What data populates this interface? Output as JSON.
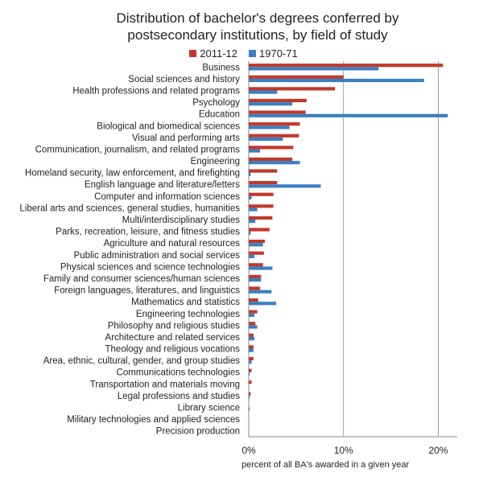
{
  "chart_data": {
    "type": "bar",
    "orientation": "horizontal",
    "title": "Distribution of bachelor's degrees conferred by postsecondary institutions, by field of study",
    "title_lines": [
      "Distribution of bachelor's degrees conferred by",
      "postsecondary institutions, by field of study"
    ],
    "xlabel": "percent of all BA's awarded in a given year",
    "ylabel": "",
    "xlim": [
      0,
      22
    ],
    "x_ticks": [
      {
        "value": 0,
        "label": "0%"
      },
      {
        "value": 10,
        "label": "10%"
      },
      {
        "value": 20,
        "label": "20%"
      }
    ],
    "grid": true,
    "legend_placement": "top",
    "categories": [
      "Business",
      "Social sciences and history",
      "Health professions and related programs",
      "Psychology",
      "Education",
      "Biological and biomedical sciences",
      "Visual and performing arts",
      "Communication, journalism, and related programs",
      "Engineering",
      "Homeland security, law enforcement, and firefighting",
      "English language and literature/letters",
      "Computer and information sciences",
      "Liberal arts and sciences, general studies, humanities",
      "Multi/interdisciplinary studies",
      "Parks, recreation, leisure, and fitness studies",
      "Agriculture and natural resources",
      "Public administration and social services",
      "Physical sciences and science technologies",
      "Family and consumer sciences/human sciences",
      "Foreign languages, literatures, and linguistics",
      "Mathematics and statistics",
      "Engineering technologies",
      "Philosophy and religious studies",
      "Architecture and related services",
      "Theology and religious vocations",
      "Area, ethnic, cultural, gender, and group studies",
      "Communications technologies",
      "Transportation and materials moving",
      "Legal professions and studies",
      "Library science",
      "Military technologies and applied sciences",
      "Precision production"
    ],
    "series": [
      {
        "name": "2011-12",
        "color": "#c0392b",
        "values": [
          20.5,
          10.0,
          9.1,
          6.1,
          6.0,
          5.4,
          5.3,
          4.7,
          4.6,
          3.0,
          3.0,
          2.6,
          2.6,
          2.5,
          2.2,
          1.7,
          1.6,
          1.5,
          1.3,
          1.2,
          1.0,
          0.9,
          0.7,
          0.5,
          0.5,
          0.5,
          0.3,
          0.3,
          0.2,
          0.0,
          0.0,
          0.0
        ]
      },
      {
        "name": "1970-71",
        "color": "#3a7fc1",
        "values": [
          13.7,
          18.5,
          3.0,
          4.6,
          21.0,
          4.3,
          3.6,
          1.2,
          5.4,
          0.2,
          7.6,
          0.3,
          0.9,
          0.7,
          0.2,
          1.5,
          0.6,
          2.5,
          1.3,
          2.4,
          2.9,
          0.6,
          0.9,
          0.6,
          0.5,
          0.3,
          0.1,
          0.0,
          0.1,
          0.1,
          0.0,
          0.0
        ]
      }
    ]
  }
}
